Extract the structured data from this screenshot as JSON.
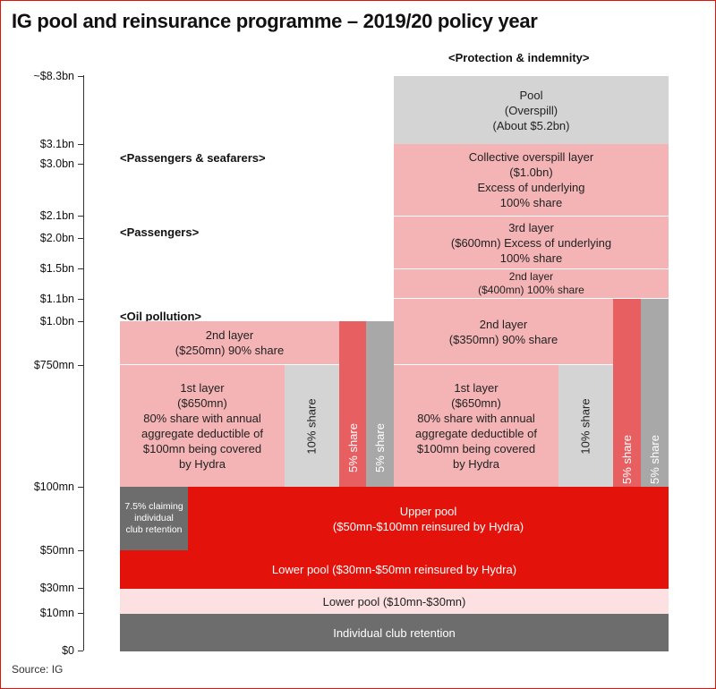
{
  "title": "IG pool and reinsurance programme – 2019/20 policy year",
  "source": "Source: IG",
  "y_axis_labels": [
    "~$8.3bn",
    "$3.1bn",
    "$3.0bn",
    "$2.1bn",
    "$2.0bn",
    "$1.5bn",
    "$1.1bn",
    "$1.0bn",
    "$750mn",
    "$100mn",
    "$50mn",
    "$30mn",
    "$10mn",
    "$0"
  ],
  "section_headers": {
    "protection": "<Protection & indemnity>",
    "passengers_seafarers": "<Passengers & seafarers>",
    "passengers": "<Passengers>",
    "oil": "<Oil pollution>"
  },
  "blocks": {
    "individual_retention": "Individual club retention",
    "lower_pool_10_30": "Lower pool ($10mn-$30mn)",
    "lower_pool_30_50": "Lower pool ($30mn-$50mn reinsured by Hydra)",
    "claiming_retention": "7.5% claiming\nindividual\nclub retention",
    "upper_pool": "Upper pool\n($50mn-$100mn reinsured by Hydra)",
    "first_layer": "1st layer\n($650mn)\n80% share with annual\naggregate deductible of\n$100mn being covered\nby Hydra",
    "share_10": "10% share",
    "share_5": "5% share",
    "oil_second_layer": "2nd layer\n($250mn) 90% share",
    "pi_second_layer_350": "2nd layer\n($350mn) 90% share",
    "pi_second_layer_400": "2nd layer\n($400mn) 100% share",
    "third_layer": "3rd layer\n($600mn) Excess of underlying\n100% share",
    "collective_overspill": "Collective overspill layer\n($1.0bn)\nExcess of underlying\n100% share",
    "pool_overspill": "Pool\n(Overspill)\n(About $5.2bn)"
  },
  "colors": {
    "red": "#e3120b",
    "pink": "#f4b4b6",
    "light_pink": "#fde0e1",
    "dark_red": "#e85f62",
    "grey": "#a8a8a8",
    "light_grey": "#d4d4d4",
    "dark_grey": "#6d6d6d"
  }
}
